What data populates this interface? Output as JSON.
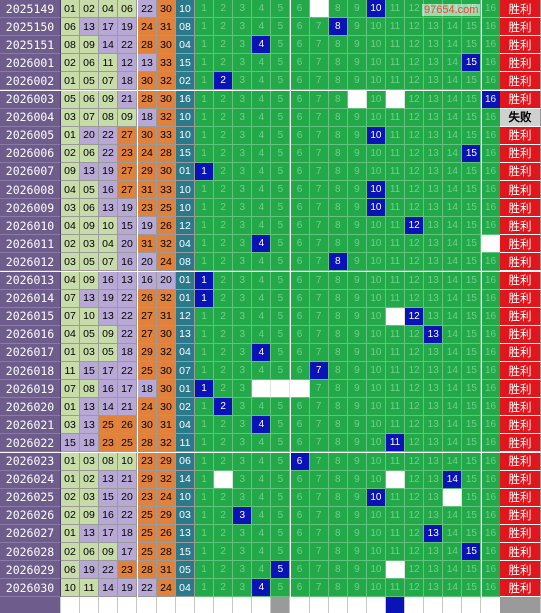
{
  "watermark": "97654.com",
  "results": {
    "win": "胜利",
    "lose": "失败"
  },
  "rows": [
    {
      "period": "2025149",
      "nums": [
        "01",
        "02",
        "04",
        "06",
        "22",
        "30"
      ],
      "blue": "10",
      "hit": 10,
      "result": "win"
    },
    {
      "period": "2025150",
      "nums": [
        "06",
        "13",
        "17",
        "19",
        "24",
        "31"
      ],
      "blue": "08",
      "hit": 8,
      "result": "win"
    },
    {
      "period": "2025151",
      "nums": [
        "08",
        "09",
        "14",
        "22",
        "28",
        "30"
      ],
      "blue": "04",
      "hit": 4,
      "result": "win"
    },
    {
      "period": "2026001",
      "nums": [
        "02",
        "06",
        "11",
        "12",
        "13",
        "33"
      ],
      "blue": "15",
      "hit": 15,
      "result": "win"
    },
    {
      "period": "2026002",
      "nums": [
        "01",
        "05",
        "07",
        "18",
        "30",
        "32"
      ],
      "blue": "02",
      "hit": 2,
      "result": "win"
    },
    {
      "period": "2026003",
      "nums": [
        "05",
        "06",
        "09",
        "21",
        "28",
        "30"
      ],
      "blue": "16",
      "hit": 16,
      "result": "win"
    },
    {
      "period": "2026004",
      "nums": [
        "03",
        "07",
        "08",
        "09",
        "18",
        "32"
      ],
      "blue": "10",
      "hit": null,
      "result": "lose"
    },
    {
      "period": "2026005",
      "nums": [
        "01",
        "20",
        "22",
        "27",
        "30",
        "33"
      ],
      "blue": "10",
      "hit": 10,
      "result": "win"
    },
    {
      "period": "2026006",
      "nums": [
        "02",
        "06",
        "22",
        "23",
        "24",
        "28"
      ],
      "blue": "15",
      "hit": 15,
      "result": "win"
    },
    {
      "period": "2026007",
      "nums": [
        "09",
        "13",
        "19",
        "27",
        "29",
        "30"
      ],
      "blue": "01",
      "hit": 1,
      "result": "win"
    },
    {
      "period": "2026008",
      "nums": [
        "04",
        "05",
        "16",
        "27",
        "31",
        "33"
      ],
      "blue": "10",
      "hit": 10,
      "result": "win"
    },
    {
      "period": "2026009",
      "nums": [
        "03",
        "06",
        "13",
        "19",
        "23",
        "25"
      ],
      "blue": "10",
      "hit": 10,
      "result": "win"
    },
    {
      "period": "2026010",
      "nums": [
        "04",
        "09",
        "10",
        "15",
        "19",
        "26"
      ],
      "blue": "12",
      "hit": 12,
      "result": "win"
    },
    {
      "period": "2026011",
      "nums": [
        "02",
        "03",
        "04",
        "20",
        "31",
        "32"
      ],
      "blue": "04",
      "hit": 4,
      "result": "win"
    },
    {
      "period": "2026012",
      "nums": [
        "03",
        "05",
        "07",
        "16",
        "20",
        "24"
      ],
      "blue": "08",
      "hit": 8,
      "result": "win"
    },
    {
      "period": "2026013",
      "nums": [
        "04",
        "09",
        "16",
        "13",
        "16",
        "20"
      ],
      "blue": "01",
      "hit": 1,
      "result": "win"
    },
    {
      "period": "2026014",
      "nums": [
        "07",
        "13",
        "19",
        "22",
        "26",
        "32"
      ],
      "blue": "01",
      "hit": 1,
      "result": "win"
    },
    {
      "period": "2026015",
      "nums": [
        "07",
        "10",
        "13",
        "22",
        "27",
        "31"
      ],
      "blue": "12",
      "hit": 12,
      "result": "win"
    },
    {
      "period": "2026016",
      "nums": [
        "04",
        "05",
        "09",
        "22",
        "27",
        "30"
      ],
      "blue": "13",
      "hit": 13,
      "result": "win"
    },
    {
      "period": "2026017",
      "nums": [
        "01",
        "03",
        "05",
        "18",
        "29",
        "32"
      ],
      "blue": "04",
      "hit": 4,
      "result": "win"
    },
    {
      "period": "2026018",
      "nums": [
        "11",
        "15",
        "17",
        "22",
        "25",
        "30"
      ],
      "blue": "07",
      "hit": 7,
      "result": "win"
    },
    {
      "period": "2026019",
      "nums": [
        "07",
        "08",
        "16",
        "17",
        "18",
        "30"
      ],
      "blue": "01",
      "hit": 1,
      "result": "win"
    },
    {
      "period": "2026020",
      "nums": [
        "01",
        "13",
        "14",
        "21",
        "24",
        "30"
      ],
      "blue": "02",
      "hit": 2,
      "result": "win"
    },
    {
      "period": "2026021",
      "nums": [
        "03",
        "13",
        "25",
        "26",
        "30",
        "31"
      ],
      "blue": "04",
      "hit": 4,
      "result": "win"
    },
    {
      "period": "2026022",
      "nums": [
        "15",
        "18",
        "23",
        "25",
        "28",
        "32"
      ],
      "blue": "11",
      "hit": 11,
      "result": "win"
    },
    {
      "period": "2026023",
      "nums": [
        "01",
        "03",
        "08",
        "10",
        "23",
        "29"
      ],
      "blue": "06",
      "hit": 6,
      "result": "win"
    },
    {
      "period": "2026024",
      "nums": [
        "01",
        "02",
        "13",
        "21",
        "29",
        "32"
      ],
      "blue": "14",
      "hit": 14,
      "result": "win"
    },
    {
      "period": "2026025",
      "nums": [
        "02",
        "03",
        "15",
        "20",
        "23",
        "24"
      ],
      "blue": "10",
      "hit": 10,
      "result": "win"
    },
    {
      "period": "2026026",
      "nums": [
        "02",
        "09",
        "16",
        "22",
        "25",
        "29"
      ],
      "blue": "03",
      "hit": 3,
      "result": "win"
    },
    {
      "period": "2026027",
      "nums": [
        "01",
        "13",
        "17",
        "18",
        "25",
        "26"
      ],
      "blue": "13",
      "hit": 13,
      "result": "win"
    },
    {
      "period": "2026028",
      "nums": [
        "02",
        "06",
        "09",
        "17",
        "25",
        "28"
      ],
      "blue": "15",
      "hit": 15,
      "result": "win"
    },
    {
      "period": "2026029",
      "nums": [
        "06",
        "19",
        "22",
        "23",
        "28",
        "31"
      ],
      "blue": "05",
      "hit": 5,
      "result": "win"
    },
    {
      "period": "2026030",
      "nums": [
        "10",
        "11",
        "14",
        "19",
        "22",
        "24"
      ],
      "blue": "04",
      "hit": 4,
      "result": "win"
    }
  ],
  "blanks": [
    [
      7
    ],
    [],
    [],
    [],
    [],
    [
      9,
      11
    ],
    [],
    [],
    [],
    [],
    [],
    [],
    [],
    [
      16
    ],
    [],
    [],
    [],
    [
      11
    ],
    [],
    [],
    [],
    [
      4,
      5,
      6
    ],
    [],
    [],
    [],
    [],
    [
      2,
      11
    ],
    [
      14
    ],
    [],
    [],
    [],
    [
      11
    ],
    []
  ],
  "palette": {
    "period_bg": "#6e5c8c",
    "grid_green": "#23a84a",
    "hit_blue": "#0a13b6",
    "win_red": "#e0161c",
    "lose_grey": "#d0d0d0"
  }
}
